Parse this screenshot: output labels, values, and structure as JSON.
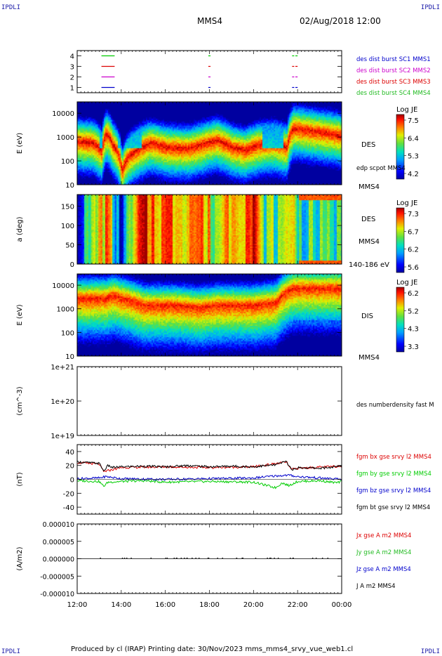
{
  "corners": {
    "tl": "IPDLI",
    "tr": "IPDLI",
    "bl": "IPDLI",
    "br": "IPDLI"
  },
  "header": {
    "title": "MMS4",
    "datetime": "02/Aug/2018 12:00"
  },
  "footer": "Produced by cl (IRAP)   Printing date: 30/Nov/2023   mms_mms4_srvy_vue_web1.cl",
  "time_axis": {
    "labels": [
      "12:00",
      "14:00",
      "16:00",
      "18:00",
      "20:00",
      "22:00",
      "00:00"
    ],
    "range_hours": [
      12,
      24
    ]
  },
  "colors": {
    "black": "#000000",
    "blue": "#0000cc",
    "magenta": "#cc00cc",
    "red": "#dd0000",
    "green": "#00cc00",
    "green_text": "#22bb22"
  },
  "chart_data": [
    {
      "type": "line",
      "panel": "burst-availability",
      "ylim": [
        0.5,
        4.5
      ],
      "yticks": [
        "1",
        "2",
        "3",
        "4"
      ],
      "legend": [
        {
          "name": "des dist burst SC1 MMS1",
          "color": "#0000cc"
        },
        {
          "name": "des dist burst SC2 MMS2",
          "color": "#cc00cc"
        },
        {
          "name": "des dist burst SC3 MMS3",
          "color": "#dd0000"
        },
        {
          "name": "des dist burst SC4 MMS4",
          "color": "#22bb22"
        }
      ],
      "series": [
        {
          "level": 4,
          "color": "#00cc00",
          "segments": [
            [
              13.1,
              13.7
            ],
            [
              17.95,
              18.05
            ],
            [
              21.75,
              21.85
            ],
            [
              21.9,
              22.0
            ]
          ]
        },
        {
          "level": 3,
          "color": "#dd0000",
          "segments": [
            [
              13.1,
              13.7
            ],
            [
              17.95,
              18.05
            ],
            [
              21.75,
              21.85
            ],
            [
              21.9,
              22.0
            ]
          ]
        },
        {
          "level": 2,
          "color": "#cc00cc",
          "segments": [
            [
              13.1,
              13.7
            ],
            [
              17.95,
              18.05
            ],
            [
              21.75,
              21.85
            ],
            [
              21.9,
              22.0
            ]
          ]
        },
        {
          "level": 1,
          "color": "#0000cc",
          "segments": [
            [
              13.1,
              13.7
            ],
            [
              17.95,
              18.05
            ],
            [
              21.75,
              21.85
            ],
            [
              21.9,
              22.0
            ]
          ]
        }
      ]
    },
    {
      "type": "heatmap",
      "panel": "des-energy",
      "ylabel": "E (eV)",
      "yscale": "log",
      "ylim": [
        10,
        30000
      ],
      "yticks": [
        "10",
        "100",
        "1000",
        "10000"
      ],
      "right_labels": [
        "DES",
        "edp scpot MMS4",
        "MMS4"
      ],
      "colorbar": {
        "title": "Log JE",
        "ticks": [
          "7.5",
          "6.4",
          "5.3",
          "4.2"
        ],
        "range": [
          4.2,
          7.5
        ]
      },
      "peak_energy_ev": [
        [
          12,
          700
        ],
        [
          12.7,
          600
        ],
        [
          13.1,
          250
        ],
        [
          13.3,
          1500
        ],
        [
          13.6,
          500
        ],
        [
          14.0,
          30
        ],
        [
          14.9,
          400
        ],
        [
          15.3,
          600
        ],
        [
          16.0,
          400
        ],
        [
          17.0,
          350
        ],
        [
          17.6,
          500
        ],
        [
          18.3,
          800
        ],
        [
          19.0,
          400
        ],
        [
          19.6,
          300
        ],
        [
          20.2,
          500
        ],
        [
          20.9,
          600
        ],
        [
          21.5,
          400
        ],
        [
          21.8,
          2500
        ],
        [
          22.5,
          2000
        ],
        [
          23.5,
          1500
        ],
        [
          24,
          1200
        ]
      ],
      "low_intensity_hours": [
        [
          13.0,
          13.1
        ],
        [
          13.8,
          14.9
        ],
        [
          20.4,
          21.3
        ]
      ]
    },
    {
      "type": "heatmap",
      "panel": "des-pitch-angle",
      "ylabel": "a (deg)",
      "ylim": [
        0,
        180
      ],
      "yticks": [
        "0",
        "50",
        "100",
        "150"
      ],
      "right_labels": [
        "DES",
        "MMS4",
        "140-186 eV"
      ],
      "colorbar": {
        "title": "Log JE",
        "ticks": [
          "7.3",
          "6.7",
          "6.2",
          "5.6"
        ],
        "range": [
          5.6,
          7.3
        ]
      },
      "intensity_by_hour": [
        [
          12,
          0.15
        ],
        [
          13.0,
          0.7
        ],
        [
          13.3,
          0.8
        ],
        [
          13.6,
          0.5
        ],
        [
          13.9,
          0.1
        ],
        [
          14.9,
          0.9
        ],
        [
          15.5,
          0.85
        ],
        [
          16.5,
          0.8
        ],
        [
          17.5,
          0.85
        ],
        [
          18.2,
          0.6
        ],
        [
          19.0,
          0.85
        ],
        [
          20.0,
          0.9
        ],
        [
          20.4,
          0.5
        ],
        [
          21.3,
          0.55
        ],
        [
          21.8,
          0.8
        ],
        [
          22.0,
          0.45
        ],
        [
          24,
          0.45
        ]
      ]
    },
    {
      "type": "heatmap",
      "panel": "dis-energy",
      "ylabel": "E (eV)",
      "yscale": "log",
      "ylim": [
        10,
        30000
      ],
      "yticks": [
        "10",
        "100",
        "1000",
        "10000"
      ],
      "right_labels": [
        "DIS",
        "MMS4"
      ],
      "colorbar": {
        "title": "Log JE",
        "ticks": [
          "6.2",
          "5.2",
          "4.3",
          "3.3"
        ],
        "range": [
          3.3,
          6.2
        ]
      },
      "peak_energy_ev": [
        [
          12,
          3000
        ],
        [
          13.0,
          3000
        ],
        [
          13.3,
          3000
        ],
        [
          13.6,
          4000
        ],
        [
          14.0,
          3000
        ],
        [
          15.0,
          1500
        ],
        [
          15.5,
          1500
        ],
        [
          16.5,
          1500
        ],
        [
          17.5,
          1200
        ],
        [
          18.3,
          1500
        ],
        [
          19.0,
          1500
        ],
        [
          20.0,
          1500
        ],
        [
          21.0,
          2000
        ],
        [
          21.8,
          8000
        ],
        [
          24,
          8000
        ]
      ]
    },
    {
      "type": "line",
      "panel": "density",
      "ylabel": "(cm^-3)",
      "yscale": "log",
      "yticks": [
        "1e+19",
        "1e+20",
        "1e+21"
      ],
      "ylim": [
        1e+19,
        1e+21
      ],
      "legend": [
        {
          "name": "des numberdensity fast M",
          "color": "#000000"
        }
      ],
      "series": []
    },
    {
      "type": "line",
      "panel": "magnetic-field",
      "ylabel": "(nT)",
      "ylim": [
        -50,
        50
      ],
      "yticks": [
        "-40",
        "-20",
        "0",
        "20",
        "40"
      ],
      "legend": [
        {
          "name": "fgm bx gse srvy l2 MMS4",
          "color": "#dd0000"
        },
        {
          "name": "fgm by gse srvy l2 MMS4",
          "color": "#00cc00"
        },
        {
          "name": "fgm bz gse srvy l2 MMS4",
          "color": "#0000cc"
        },
        {
          "name": "fgm bt gse srvy l2 MMS4",
          "color": "#000000"
        }
      ],
      "series": [
        {
          "name": "fgm bt gse srvy l2 MMS4",
          "color": "#000000",
          "x": [
            12,
            12.5,
            13.0,
            13.1,
            13.2,
            13.4,
            13.6,
            14.0,
            15.0,
            16.0,
            17.0,
            18.0,
            19.0,
            20.0,
            21.0,
            21.5,
            21.7,
            21.9,
            22.0,
            23.0,
            23.8,
            24.0
          ],
          "y": [
            25,
            24,
            23,
            18,
            12,
            20,
            17,
            18,
            19,
            18,
            20,
            18,
            19,
            18,
            21,
            26,
            15,
            14,
            17,
            16,
            18,
            20
          ]
        },
        {
          "name": "fgm bx gse srvy l2 MMS4",
          "color": "#dd0000",
          "x": [
            12,
            13.0,
            13.2,
            14.0,
            16.0,
            18.0,
            20.0,
            21.5,
            21.7,
            22.0,
            24.0
          ],
          "y": [
            24,
            22,
            11,
            17,
            18,
            17,
            18,
            25,
            14,
            16,
            19
          ]
        },
        {
          "name": "fgm bz gse srvy l2 MMS4",
          "color": "#0000cc",
          "x": [
            12,
            13.0,
            13.3,
            14.0,
            16.0,
            18.0,
            20.0,
            21.0,
            21.6,
            22.0,
            23.0,
            24.0
          ],
          "y": [
            1,
            2,
            4,
            1,
            0,
            1,
            2,
            5,
            6,
            4,
            2,
            0
          ]
        },
        {
          "name": "fgm by gse srvy l2 MMS4",
          "color": "#00cc00",
          "x": [
            12,
            13.0,
            13.2,
            13.4,
            14.0,
            15.0,
            16.0,
            18.0,
            20.0,
            20.5,
            21.0,
            21.3,
            21.6,
            22.0,
            23.0,
            23.8,
            24.0
          ],
          "y": [
            -2,
            -3,
            -10,
            -4,
            -3,
            -2,
            -4,
            -3,
            -4,
            -8,
            -12,
            -5,
            -9,
            -3,
            -2,
            -5,
            -3
          ]
        }
      ]
    },
    {
      "type": "line",
      "panel": "current-density",
      "ylabel": "(A/m2)",
      "ylim": [
        -1e-05,
        1e-05
      ],
      "yticks": [
        "-0.000010",
        "-0.000005",
        "0.000000",
        "0.000005",
        "0.000010"
      ],
      "legend": [
        {
          "name": "Jx gse A m2 MMS4",
          "color": "#dd0000"
        },
        {
          "name": "Jy gse A m2 MMS4",
          "color": "#22bb22"
        },
        {
          "name": "Jz gse A m2 MMS4",
          "color": "#0000cc"
        },
        {
          "name": "J A m2 MMS4",
          "color": "#000000"
        }
      ],
      "series": [
        {
          "name": "J A m2 MMS4",
          "color": "#000000",
          "x": [
            12,
            24
          ],
          "y": [
            0,
            0
          ]
        }
      ]
    }
  ]
}
